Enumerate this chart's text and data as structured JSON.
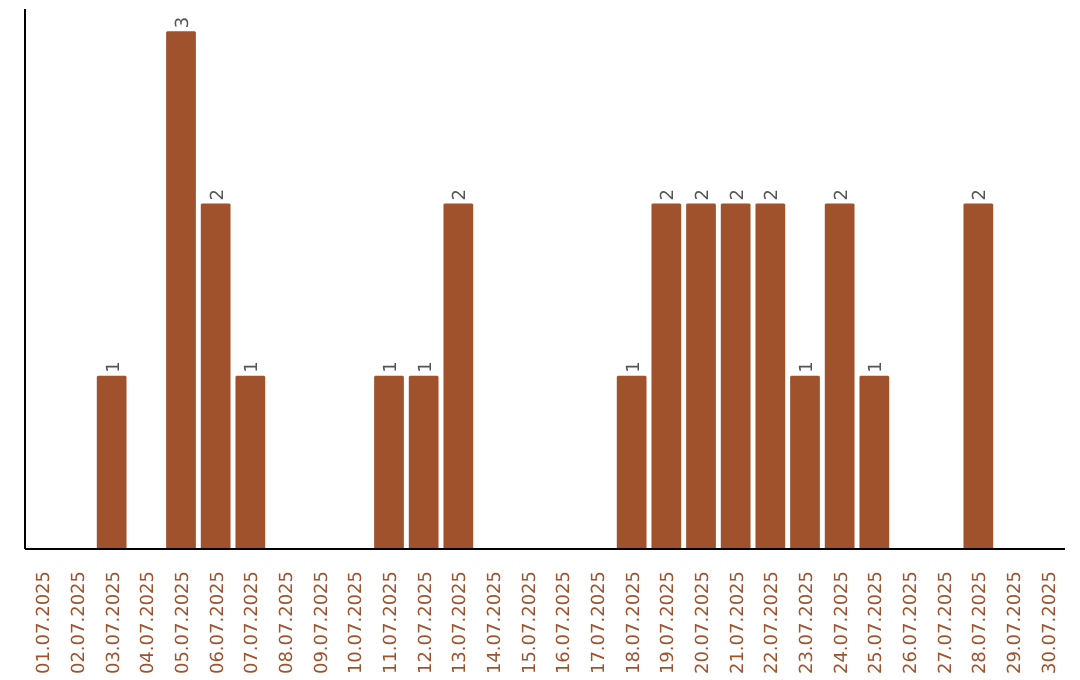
{
  "chart_data": {
    "type": "bar",
    "categories": [
      "01.07.2025",
      "02.07.2025",
      "03.07.2025",
      "04.07.2025",
      "05.07.2025",
      "06.07.2025",
      "07.07.2025",
      "08.07.2025",
      "09.07.2025",
      "10.07.2025",
      "11.07.2025",
      "12.07.2025",
      "13.07.2025",
      "14.07.2025",
      "15.07.2025",
      "16.07.2025",
      "17.07.2025",
      "18.07.2025",
      "19.07.2025",
      "20.07.2025",
      "21.07.2025",
      "22.07.2025",
      "23.07.2025",
      "24.07.2025",
      "25.07.2025",
      "26.07.2025",
      "27.07.2025",
      "28.07.2025",
      "29.07.2025",
      "30.07.2025"
    ],
    "values": [
      0,
      0,
      1,
      0,
      3,
      2,
      1,
      0,
      0,
      0,
      1,
      1,
      2,
      0,
      0,
      0,
      0,
      1,
      2,
      2,
      2,
      2,
      1,
      2,
      1,
      0,
      0,
      2,
      0,
      0
    ],
    "value_labels": [
      null,
      null,
      "1",
      null,
      "3",
      "2",
      "1",
      null,
      null,
      null,
      "1",
      "1",
      "2",
      null,
      null,
      null,
      null,
      "1",
      "2",
      "2",
      "2",
      "2",
      "1",
      "2",
      "1",
      null,
      null,
      "2",
      null,
      null
    ],
    "color": "#a0522d",
    "grid": false,
    "tick_labels": "x"
  }
}
